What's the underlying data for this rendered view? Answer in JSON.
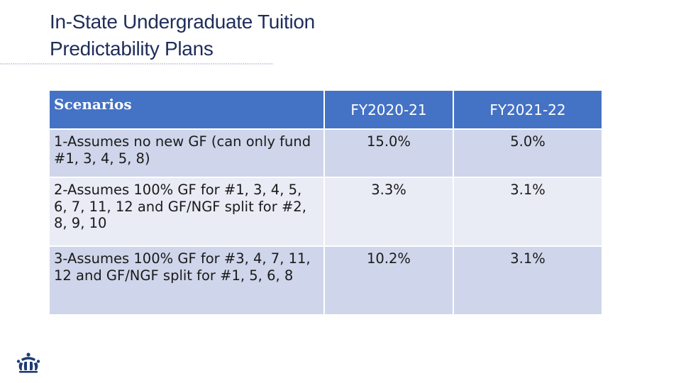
{
  "slide": {
    "title_line1": "In-State Undergraduate Tuition",
    "title_line2": "Predictability Plans"
  },
  "table": {
    "headers": [
      "Scenarios",
      "FY2020-21",
      "FY2021-22"
    ],
    "rows": [
      {
        "scenario": "1-Assumes no new GF (can only fund #1, 3, 4, 5, 8)",
        "fy2020_21": "15.0%",
        "fy2021_22": "5.0%"
      },
      {
        "scenario": "2-Assumes 100% GF for #1, 3, 4, 5, 6, 7, 11, 12 and GF/NGF split for #2, 8, 9, 10",
        "fy2020_21": "3.3%",
        "fy2021_22": "3.1%"
      },
      {
        "scenario": "3-Assumes 100% GF for #3, 4, 7, 11, 12 and GF/NGF split for #1, 5, 6, 8",
        "fy2020_21": "10.2%",
        "fy2021_22": "3.1%"
      }
    ]
  },
  "logo": {
    "icon": "crown-icon",
    "color": "#1f3b73"
  },
  "colors": {
    "header_fill": "#4472c4",
    "row_odd_fill": "#cfd5ea",
    "row_even_fill": "#e9ebf5",
    "title_color": "#1f2d5a"
  }
}
